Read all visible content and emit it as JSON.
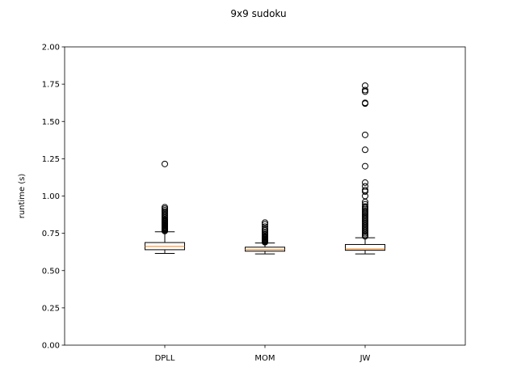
{
  "chart_data": {
    "type": "box",
    "title": "9x9 sudoku",
    "xlabel": "",
    "ylabel": "runtime (s)",
    "ylim": [
      0,
      2
    ],
    "yticks": [
      "0.00",
      "0.25",
      "0.50",
      "0.75",
      "1.00",
      "1.25",
      "1.50",
      "1.75",
      "2.00"
    ],
    "categories": [
      "DPLL",
      "MOM",
      "JW"
    ],
    "boxes": [
      {
        "category": "DPLL",
        "whisker_low": 0.615,
        "q1": 0.64,
        "median": 0.662,
        "q3": 0.688,
        "whisker_high": 0.76,
        "outliers": [
          0.765,
          0.77,
          0.775,
          0.78,
          0.785,
          0.79,
          0.795,
          0.8,
          0.805,
          0.81,
          0.815,
          0.82,
          0.825,
          0.83,
          0.835,
          0.84,
          0.845,
          0.855,
          0.865,
          0.875,
          0.885,
          0.895,
          0.905,
          0.915,
          0.925,
          1.215
        ]
      },
      {
        "category": "MOM",
        "whisker_low": 0.612,
        "q1": 0.63,
        "median": 0.64,
        "q3": 0.657,
        "whisker_high": 0.685,
        "outliers": [
          0.69,
          0.695,
          0.7,
          0.705,
          0.71,
          0.715,
          0.72,
          0.725,
          0.73,
          0.74,
          0.75,
          0.76,
          0.77,
          0.78,
          0.795,
          0.81,
          0.822
        ]
      },
      {
        "category": "JW",
        "whisker_low": 0.612,
        "q1": 0.636,
        "median": 0.645,
        "q3": 0.675,
        "whisker_high": 0.72,
        "outliers": [
          0.73,
          0.74,
          0.75,
          0.76,
          0.77,
          0.78,
          0.79,
          0.8,
          0.81,
          0.82,
          0.83,
          0.84,
          0.85,
          0.86,
          0.87,
          0.88,
          0.89,
          0.9,
          0.91,
          0.92,
          0.93,
          0.945,
          0.96,
          1.0,
          1.03,
          1.04,
          1.065,
          1.09,
          1.2,
          1.31,
          1.41,
          1.62,
          1.625,
          1.7,
          1.71,
          1.74
        ]
      }
    ],
    "colors": {
      "box": "#000000",
      "median": "#ff7f0e",
      "outlier": "#000000"
    }
  }
}
